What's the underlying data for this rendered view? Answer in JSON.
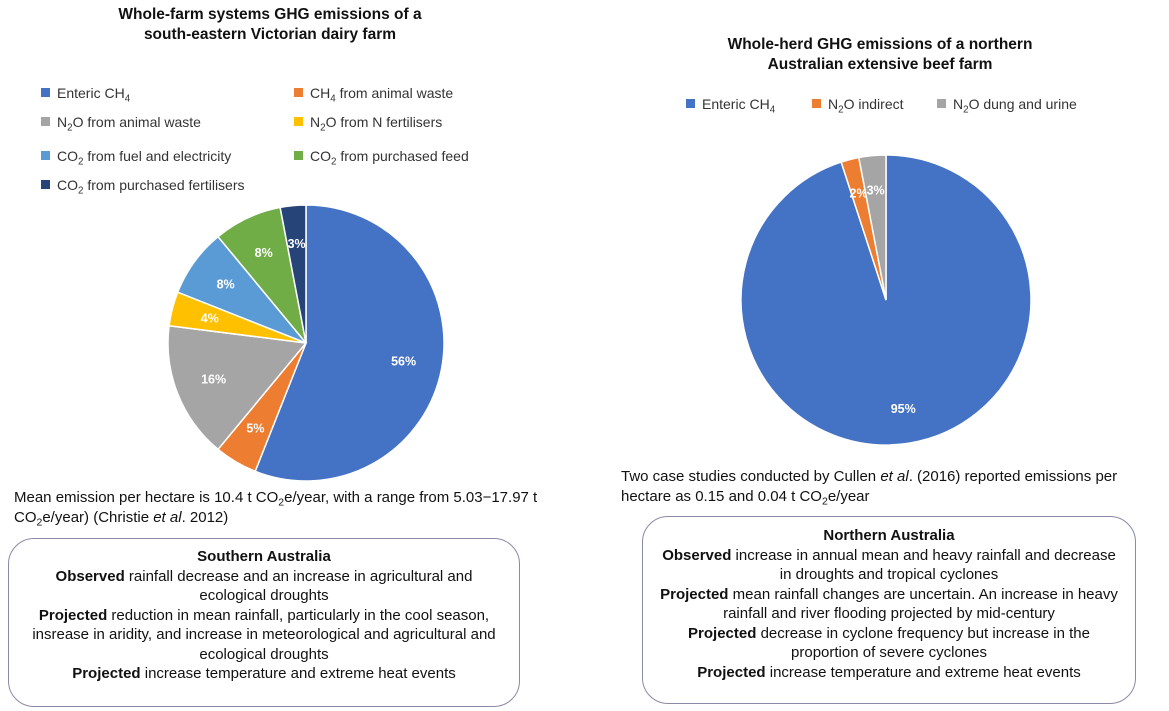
{
  "chart_data": [
    {
      "type": "pie",
      "title_line1": "Whole-farm systems GHG emissions of a",
      "title_line2": "south-eastern Victorian dairy farm",
      "slices": [
        {
          "label_pre": "Enteric CH",
          "label_sub": "4",
          "label_post": "",
          "value": 56,
          "value_label": "56%",
          "color": "#4472C4"
        },
        {
          "label_pre": "CH",
          "label_sub": "4",
          "label_post": " from animal waste",
          "value": 5,
          "value_label": "5%",
          "color": "#ED7D31"
        },
        {
          "label_pre": "N",
          "label_sub": "2",
          "label_post": "O from animal waste",
          "value": 16,
          "value_label": "16%",
          "color": "#A5A5A5"
        },
        {
          "label_pre": "N",
          "label_sub": "2",
          "label_post": "O from N fertilisers",
          "value": 4,
          "value_label": "4%",
          "color": "#FFC000"
        },
        {
          "label_pre": "CO",
          "label_sub": "2",
          "label_post": " from fuel and electricity",
          "value": 8,
          "value_label": "8%",
          "color": "#5B9BD5"
        },
        {
          "label_pre": "CO",
          "label_sub": "2",
          "label_post": " from purchased feed",
          "value": 8,
          "value_label": "8%",
          "color": "#70AD47"
        },
        {
          "label_pre": "CO",
          "label_sub": "2",
          "label_post": " from purchased fertilisers",
          "value": 3,
          "value_label": "3%",
          "color": "#264478"
        }
      ]
    },
    {
      "type": "pie",
      "title_line1": "Whole-herd GHG emissions of a northern",
      "title_line2": "Australian extensive beef farm",
      "slices": [
        {
          "label_pre": "Enteric CH",
          "label_sub": "4",
          "label_post": "",
          "value": 95,
          "value_label": "95%",
          "color": "#4472C4"
        },
        {
          "label_pre": "N",
          "label_sub": "2",
          "label_post": "O indirect",
          "value": 2,
          "value_label": "2%",
          "color": "#ED7D31"
        },
        {
          "label_pre": "N",
          "label_sub": "2",
          "label_post": "O dung and urine",
          "value": 3,
          "value_label": "3%",
          "color": "#A5A5A5"
        }
      ]
    }
  ],
  "notes": {
    "left": {
      "part1": "Mean emission per hectare is 10.4 t CO",
      "sub1": "2",
      "part2": "e/year, with a range from 5.03−17.97 t CO",
      "sub2": "2",
      "part3": "e/year) (Christie ",
      "italic": "et al",
      "part4": ". 2012)"
    },
    "right": {
      "part1": "Two case studies conducted by Cullen ",
      "italic": "et al",
      "part2": ". (2016) reported emissions per hectare as 0.15 and 0.04 t CO",
      "sub1": "2",
      "part3": "e/year"
    }
  },
  "boxes": {
    "southern": {
      "heading": "Southern Australia",
      "lines": [
        {
          "bold": "Observed",
          "text": " rainfall decrease and an increase in agricultural and ecological droughts"
        },
        {
          "bold": "Projected",
          "text": " reduction in mean rainfall, particularly in the cool season, insrease in aridity, and increase in meteorological and agricultural and ecological droughts"
        },
        {
          "bold": "Projected",
          "text": " increase temperature and extreme heat events"
        }
      ]
    },
    "northern": {
      "heading": "Northern Australia",
      "lines": [
        {
          "bold": "Observed",
          "text": " increase in annual mean and heavy rainfall and decrease in droughts and tropical cyclones"
        },
        {
          "bold": "Projected",
          "text": " mean rainfall changes are uncertain. An increase in heavy rainfall and river flooding projected by mid-century"
        },
        {
          "bold": "Projected",
          "text": " decrease in cyclone frequency but increase in the proportion of severe cyclones"
        },
        {
          "bold": "Projected",
          "text": " increase temperature and extreme heat events"
        }
      ]
    }
  }
}
